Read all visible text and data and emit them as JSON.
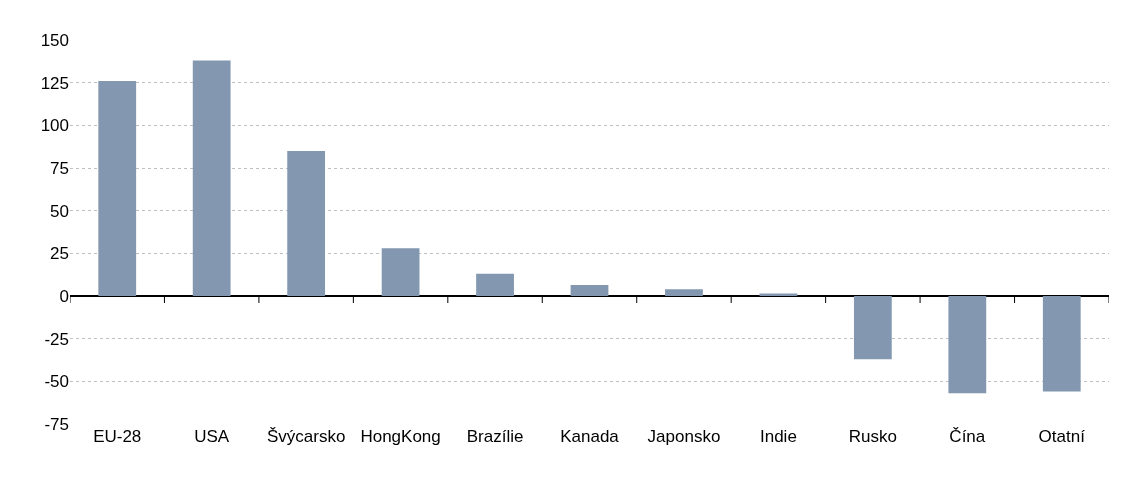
{
  "chart_data": {
    "type": "bar",
    "categories": [
      "EU-28",
      "USA",
      "Švýcarsko",
      "HongKong",
      "Brazílie",
      "Kanada",
      "Japonsko",
      "Indie",
      "Rusko",
      "Čína",
      "Otatní"
    ],
    "values": [
      126,
      138,
      85,
      28,
      13,
      6.4,
      4,
      1.5,
      -37,
      -57,
      -56
    ],
    "color": "#8497b0",
    "ylim": [
      -75,
      150
    ],
    "yticks": [
      -75,
      -50,
      -25,
      0,
      25,
      50,
      75,
      100,
      125,
      150
    ],
    "grid": "y",
    "legend": false
  }
}
